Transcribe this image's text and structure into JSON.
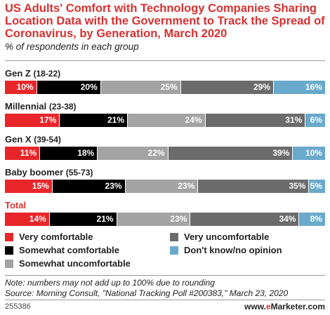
{
  "chart_data": {
    "type": "bar",
    "orientation": "horizontal",
    "stacked": true,
    "title": "US Adults' Comfort with Technology Companies Sharing Location Data with the Government to Track the Spread of Coronavirus, by Generation, March 2020",
    "subtitle": "% of respondents in each group",
    "categories": [
      {
        "label": "Gen Z",
        "range": "(18-22)",
        "is_total": false
      },
      {
        "label": "Millennial",
        "range": "(23-38)",
        "is_total": false
      },
      {
        "label": "Gen X",
        "range": "(39-54)",
        "is_total": false
      },
      {
        "label": "Baby boomer",
        "range": "(55-73)",
        "is_total": false
      },
      {
        "label": "Total",
        "range": "",
        "is_total": true
      }
    ],
    "series": [
      {
        "name": "Very comfortable",
        "color": "#e8262a",
        "values": [
          10,
          17,
          11,
          15,
          14
        ]
      },
      {
        "name": "Somewhat comfortable",
        "color": "#000000",
        "values": [
          20,
          21,
          18,
          23,
          21
        ]
      },
      {
        "name": "Somewhat uncomfortable",
        "color": "#a3a3a3",
        "values": [
          25,
          24,
          22,
          23,
          23
        ]
      },
      {
        "name": "Very uncomfortable",
        "color": "#6b6b6b",
        "values": [
          29,
          31,
          39,
          35,
          34
        ]
      },
      {
        "name": "Don't know/no opinion",
        "color": "#69a9cc",
        "values": [
          16,
          6,
          10,
          5,
          8
        ]
      }
    ],
    "value_suffix": "%"
  },
  "footer": {
    "note": "Note: numbers may not add up to 100% due to rounding",
    "source": "Source: Morning Consult, \"National Tracking Poll #200383,\" March 23, 2020",
    "id": "255386",
    "brand_prefix": "www.",
    "brand_e": "e",
    "brand_rest": "Marketer.com"
  }
}
